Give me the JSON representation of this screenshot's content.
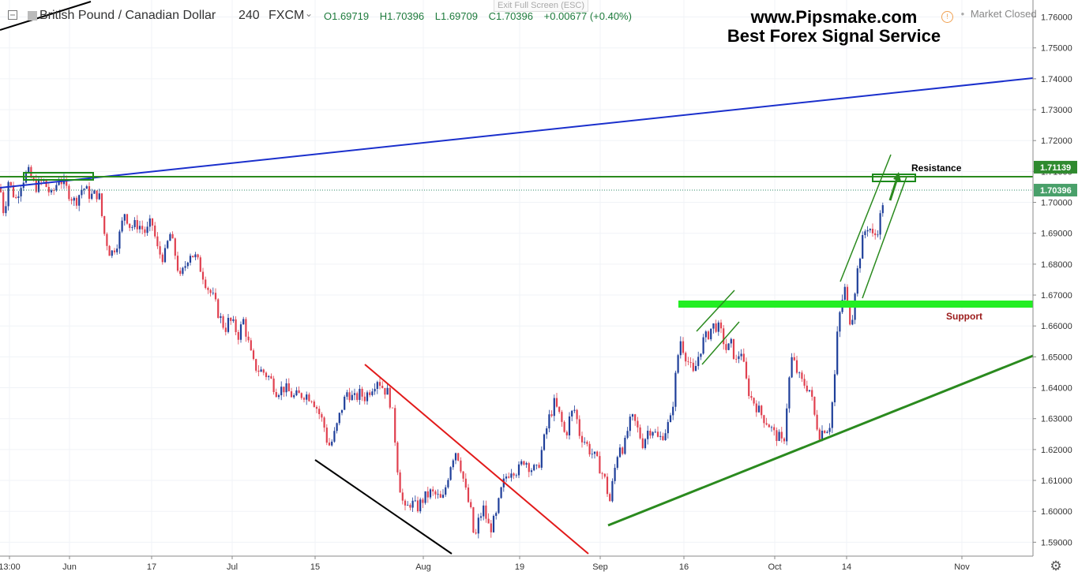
{
  "header": {
    "symbol": "British Pound / Canadian Dollar",
    "interval": "240",
    "source": "FXCM",
    "ohlc": {
      "open": "O1.69719",
      "high": "H1.70396",
      "low": "L1.69709",
      "close": "C1.70396",
      "change": "+0.00677 (+0.40%)"
    },
    "exit_fullscreen": "Exit Full Screen (ESC)",
    "market_status": "Market Closed"
  },
  "branding": {
    "line1": "www.Pipsmake.com",
    "line2": "Best Forex Signal Service"
  },
  "annotations": {
    "resistance": "Resistance",
    "support": "Support"
  },
  "colors": {
    "bull": "#1f3f9a",
    "bear": "#e0404f",
    "trend_blue": "#1a2fcc",
    "green": "#2a8a1e",
    "bright_green": "#22ee22",
    "red_line": "#e21a1a",
    "price_label": "#2f8a2f"
  },
  "chart_data": {
    "type": "candlestick",
    "y_axis": {
      "range": [
        1.5855,
        1.7655
      ],
      "ticks": [
        "1.76000",
        "1.75000",
        "1.74000",
        "1.73000",
        "1.72000",
        "1.71000",
        "1.70000",
        "1.69000",
        "1.68000",
        "1.67000",
        "1.66000",
        "1.65000",
        "1.64000",
        "1.63000",
        "1.62000",
        "1.61000",
        "1.60000",
        "1.59000"
      ]
    },
    "x_axis": {
      "ticks": [
        "13:00",
        "Jun",
        "17",
        "Jul",
        "15",
        "Aug",
        "19",
        "Sep",
        "16",
        "Oct",
        "14",
        "Nov"
      ]
    },
    "price_labels": [
      {
        "value": "1.71139",
        "price": 1.71139
      },
      {
        "value": "1.70396",
        "price": 1.70396
      }
    ],
    "path_points": [
      [
        0,
        1.705
      ],
      [
        3,
        1.7
      ],
      [
        6,
        1.694
      ],
      [
        9,
        1.708
      ],
      [
        15,
        1.704
      ],
      [
        20,
        1.701
      ],
      [
        26,
        1.706
      ],
      [
        35,
        1.71
      ],
      [
        45,
        1.705
      ],
      [
        55,
        1.707
      ],
      [
        65,
        1.702
      ],
      [
        75,
        1.708
      ],
      [
        85,
        1.704
      ],
      [
        95,
        1.7
      ],
      [
        105,
        1.705
      ],
      [
        115,
        1.702
      ],
      [
        125,
        1.703
      ],
      [
        132,
        1.69
      ],
      [
        140,
        1.683
      ],
      [
        150,
        1.688
      ],
      [
        158,
        1.697
      ],
      [
        165,
        1.692
      ],
      [
        175,
        1.693
      ],
      [
        185,
        1.69
      ],
      [
        192,
        1.694
      ],
      [
        200,
        1.684
      ],
      [
        208,
        1.682
      ],
      [
        215,
        1.69
      ],
      [
        222,
        1.683
      ],
      [
        228,
        1.675
      ],
      [
        235,
        1.68
      ],
      [
        240,
        1.684
      ],
      [
        248,
        1.682
      ],
      [
        255,
        1.678
      ],
      [
        262,
        1.673
      ],
      [
        270,
        1.669
      ],
      [
        278,
        1.663
      ],
      [
        285,
        1.659
      ],
      [
        290,
        1.662
      ],
      [
        296,
        1.66
      ],
      [
        302,
        1.657
      ],
      [
        308,
        1.662
      ],
      [
        314,
        1.655
      ],
      [
        320,
        1.648
      ],
      [
        326,
        1.646
      ],
      [
        334,
        1.645
      ],
      [
        342,
        1.643
      ],
      [
        350,
        1.639
      ],
      [
        360,
        1.64
      ],
      [
        372,
        1.637
      ],
      [
        385,
        1.638
      ],
      [
        395,
        1.637
      ],
      [
        402,
        1.633
      ],
      [
        410,
        1.628
      ],
      [
        414,
        1.623
      ],
      [
        418,
        1.621
      ],
      [
        425,
        1.626
      ],
      [
        432,
        1.633
      ],
      [
        440,
        1.639
      ],
      [
        448,
        1.636
      ],
      [
        455,
        1.638
      ],
      [
        462,
        1.637
      ],
      [
        470,
        1.64
      ],
      [
        478,
        1.643
      ],
      [
        485,
        1.64
      ],
      [
        492,
        1.638
      ],
      [
        498,
        1.63
      ],
      [
        503,
        1.615
      ],
      [
        508,
        1.605
      ],
      [
        513,
        1.6
      ],
      [
        520,
        1.603
      ],
      [
        528,
        1.601
      ],
      [
        536,
        1.604
      ],
      [
        545,
        1.606
      ],
      [
        553,
        1.605
      ],
      [
        560,
        1.603
      ],
      [
        566,
        1.61
      ],
      [
        572,
        1.617
      ],
      [
        578,
        1.62
      ],
      [
        584,
        1.614
      ],
      [
        590,
        1.606
      ],
      [
        596,
        1.6
      ],
      [
        601,
        1.59
      ],
      [
        606,
        1.597
      ],
      [
        612,
        1.601
      ],
      [
        620,
        1.594
      ],
      [
        628,
        1.598
      ],
      [
        634,
        1.606
      ],
      [
        640,
        1.611
      ],
      [
        648,
        1.614
      ],
      [
        656,
        1.613
      ],
      [
        664,
        1.617
      ],
      [
        672,
        1.614
      ],
      [
        680,
        1.613
      ],
      [
        688,
        1.622
      ],
      [
        695,
        1.63
      ],
      [
        702,
        1.635
      ],
      [
        710,
        1.63
      ],
      [
        716,
        1.624
      ],
      [
        722,
        1.631
      ],
      [
        728,
        1.633
      ],
      [
        734,
        1.625
      ],
      [
        740,
        1.623
      ],
      [
        746,
        1.62
      ],
      [
        752,
        1.618
      ],
      [
        760,
        1.614
      ],
      [
        766,
        1.61
      ],
      [
        772,
        1.603
      ],
      [
        778,
        1.613
      ],
      [
        784,
        1.622
      ],
      [
        790,
        1.62
      ],
      [
        796,
        1.628
      ],
      [
        802,
        1.63
      ],
      [
        808,
        1.626
      ],
      [
        814,
        1.622
      ],
      [
        820,
        1.626
      ],
      [
        826,
        1.627
      ],
      [
        834,
        1.623
      ],
      [
        842,
        1.626
      ],
      [
        850,
        1.63
      ],
      [
        856,
        1.645
      ],
      [
        861,
        1.656
      ],
      [
        866,
        1.652
      ],
      [
        872,
        1.648
      ],
      [
        878,
        1.644
      ],
      [
        884,
        1.65
      ],
      [
        890,
        1.655
      ],
      [
        896,
        1.657
      ],
      [
        902,
        1.66
      ],
      [
        908,
        1.66
      ],
      [
        914,
        1.657
      ],
      [
        920,
        1.652
      ],
      [
        926,
        1.654
      ],
      [
        932,
        1.648
      ],
      [
        938,
        1.653
      ],
      [
        944,
        1.643
      ],
      [
        950,
        1.637
      ],
      [
        956,
        1.635
      ],
      [
        962,
        1.632
      ],
      [
        968,
        1.63
      ],
      [
        974,
        1.628
      ],
      [
        980,
        1.625
      ],
      [
        986,
        1.624
      ],
      [
        992,
        1.621
      ],
      [
        998,
        1.64
      ],
      [
        1003,
        1.65
      ],
      [
        1008,
        1.646
      ],
      [
        1014,
        1.642
      ],
      [
        1020,
        1.641
      ],
      [
        1026,
        1.639
      ],
      [
        1032,
        1.63
      ],
      [
        1038,
        1.625
      ],
      [
        1044,
        1.627
      ],
      [
        1050,
        1.627
      ],
      [
        1056,
        1.64
      ],
      [
        1061,
        1.66
      ],
      [
        1066,
        1.668
      ],
      [
        1070,
        1.672
      ],
      [
        1074,
        1.665
      ],
      [
        1078,
        1.66
      ],
      [
        1082,
        1.671
      ],
      [
        1088,
        1.682
      ],
      [
        1094,
        1.69
      ],
      [
        1100,
        1.693
      ],
      [
        1106,
        1.688
      ],
      [
        1112,
        1.692
      ],
      [
        1116,
        1.697
      ],
      [
        1120,
        1.704
      ]
    ]
  }
}
